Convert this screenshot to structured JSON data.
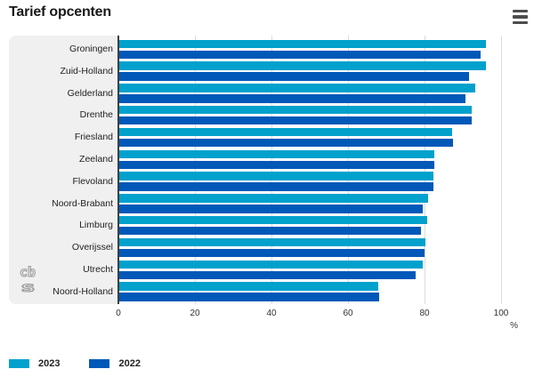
{
  "header": {
    "title": "Tarief opcenten",
    "menu_icon": "hamburger-icon"
  },
  "logo_icon": "cbs-logo",
  "chart_data": {
    "type": "bar",
    "orientation": "horizontal",
    "title": "Tarief opcenten",
    "categories": [
      "Groningen",
      "Zuid-Holland",
      "Gelderland",
      "Drenthe",
      "Friesland",
      "Zeeland",
      "Flevoland",
      "Noord-Brabant",
      "Limburg",
      "Overijssel",
      "Utrecht",
      "Noord-Holland"
    ],
    "series": [
      {
        "name": "2023",
        "color": "#00a1cd",
        "values": [
          95.7,
          95.7,
          93.0,
          92.0,
          87.0,
          82.3,
          82.2,
          80.8,
          80.4,
          79.9,
          79.4,
          67.6
        ]
      },
      {
        "name": "2022",
        "color": "#0058b8",
        "values": [
          94.4,
          91.5,
          90.4,
          92.0,
          87.2,
          82.3,
          82.2,
          79.3,
          78.9,
          79.8,
          77.5,
          67.9
        ]
      }
    ],
    "xlabel": "%",
    "xlim": [
      0,
      105
    ],
    "xticks": [
      0,
      20,
      40,
      60,
      80,
      100
    ],
    "grid": true,
    "legend_position": "bottom",
    "axis_color": "#3f3f3f",
    "gridline_color": "#dcdcdc",
    "label_panel_color": "#f0f0f0"
  }
}
